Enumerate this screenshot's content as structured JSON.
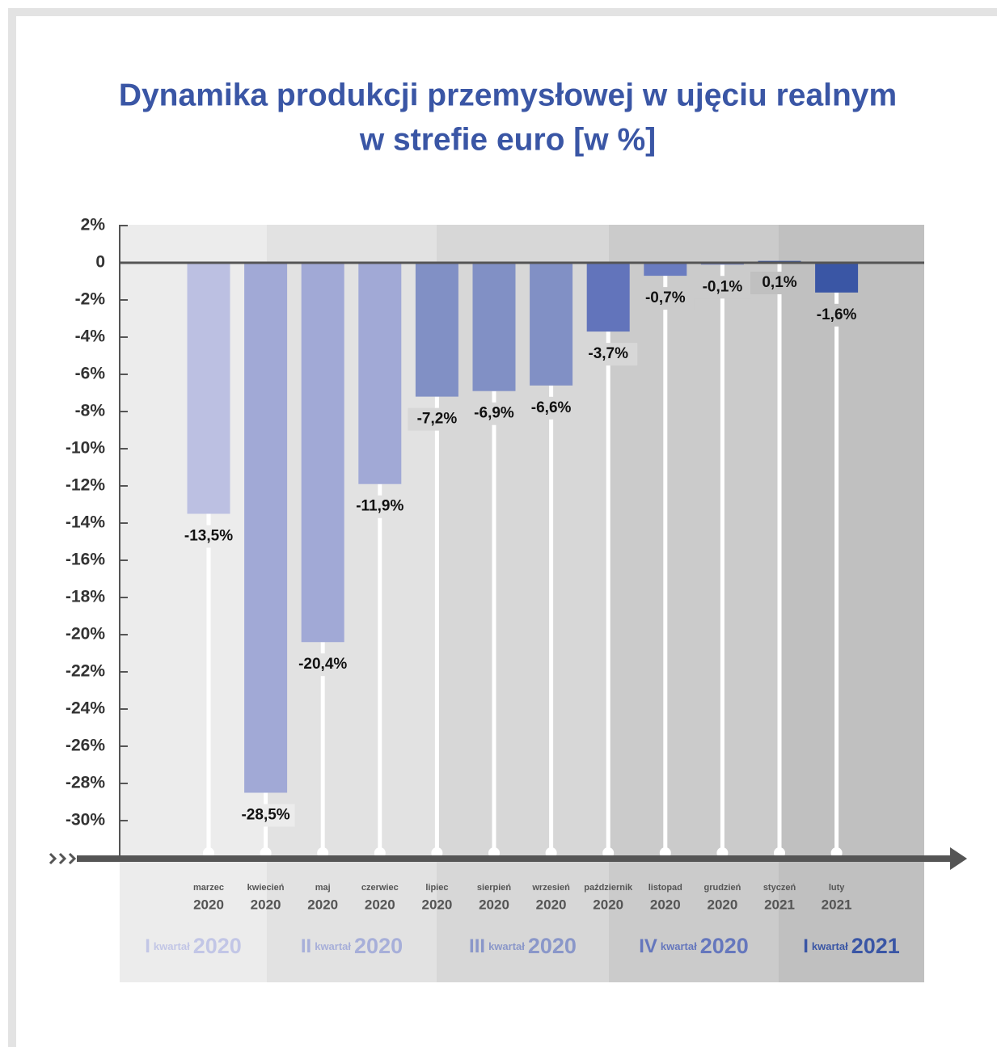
{
  "chart_data": {
    "type": "bar",
    "title_lines": [
      "Dynamika produkcji przemysłowej w ujęciu realnym",
      "w strefie euro [w %]"
    ],
    "categories": [
      "marzec",
      "kwiecień",
      "maj",
      "czerwiec",
      "lipiec",
      "sierpień",
      "wrzesień",
      "październik",
      "listopad",
      "grudzień",
      "styczeń",
      "luty"
    ],
    "years": [
      "2020",
      "2020",
      "2020",
      "2020",
      "2020",
      "2020",
      "2020",
      "2020",
      "2020",
      "2020",
      "2021",
      "2021"
    ],
    "values": [
      -13.5,
      -28.5,
      -20.4,
      -11.9,
      -7.2,
      -6.9,
      -6.6,
      -3.7,
      -0.7,
      -0.1,
      0.1,
      -1.6
    ],
    "value_labels": [
      "-13,5%",
      "-28,5%",
      "-20,4%",
      "-11,9%",
      "-7,2%",
      "-6,9%",
      "-6,6%",
      "-3,7%",
      "-0,7%",
      "-0,1%",
      "0,1%",
      "-1,6%"
    ],
    "colors": [
      "#bcc0e2",
      "#a1a9d6",
      "#a1a9d6",
      "#a1a9d6",
      "#8190c5",
      "#8190c5",
      "#8190c5",
      "#6274bb",
      "#6a7cc0",
      "#6a7cc0",
      "#3a56a5",
      "#3a56a5"
    ],
    "ylim": [
      2,
      -31
    ],
    "yticks": [
      {
        "value": 2,
        "label": "2%"
      },
      0,
      {
        "value": -2,
        "label": "-2%"
      },
      {
        "value": -4,
        "label": "-4%"
      },
      {
        "value": -6,
        "label": "-6%"
      },
      {
        "value": -8,
        "label": "-8%"
      },
      {
        "value": -10,
        "label": "-10%"
      },
      {
        "value": -12,
        "label": "-12%"
      },
      {
        "value": -14,
        "label": "-14%"
      },
      {
        "value": -16,
        "label": "-16%"
      },
      {
        "value": -18,
        "label": "-18%"
      },
      {
        "value": -20,
        "label": "-20%"
      },
      {
        "value": -22,
        "label": "-22%"
      },
      {
        "value": -24,
        "label": "-24%"
      },
      {
        "value": -26,
        "label": "-26%"
      },
      {
        "value": -28,
        "label": "-28%"
      },
      {
        "value": -30,
        "label": "-30%"
      }
    ],
    "quarters": [
      {
        "numeral": "I",
        "word": "kwartał",
        "year": "2020",
        "color": "#c2c6e6"
      },
      {
        "numeral": "II",
        "word": "kwartał",
        "year": "2020",
        "color": "#a7afd9"
      },
      {
        "numeral": "III",
        "word": "kwartał",
        "year": "2020",
        "color": "#8a97c9"
      },
      {
        "numeral": "IV",
        "word": "kwartał",
        "year": "2020",
        "color": "#6577bd"
      },
      {
        "numeral": "I",
        "word": "kwartał",
        "year": "2021",
        "color": "#3a56a5"
      }
    ]
  }
}
